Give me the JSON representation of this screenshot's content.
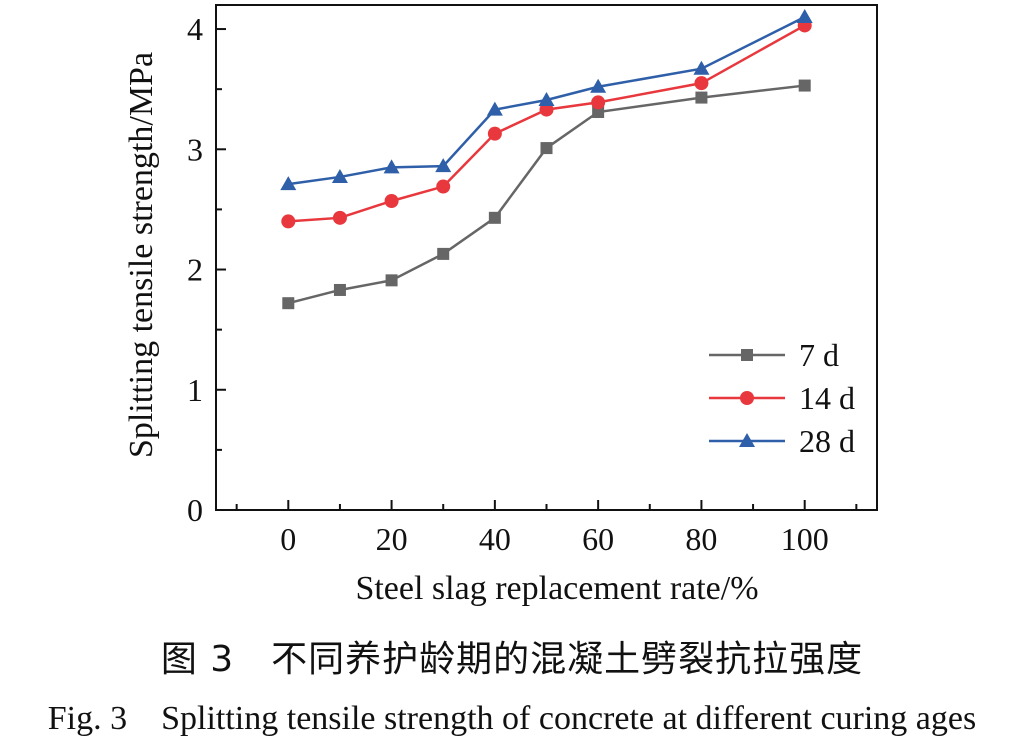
{
  "chart_data": {
    "type": "line",
    "xlabel": "Steel slag replacement rate/%",
    "ylabel": "Splitting tensile strength/MPa",
    "xlim": [
      -14,
      114
    ],
    "ylim": [
      0,
      4.2
    ],
    "x_ticks": [
      "0",
      "20",
      "40",
      "60",
      "80",
      "100"
    ],
    "y_ticks": [
      "0",
      "1",
      "2",
      "3",
      "4"
    ],
    "x": [
      0,
      10,
      20,
      30,
      40,
      50,
      60,
      80,
      100
    ],
    "series": [
      {
        "name": "7 d",
        "color": "#666666",
        "marker": "square",
        "values": [
          1.72,
          1.83,
          1.91,
          2.13,
          2.43,
          3.01,
          3.31,
          3.43,
          3.53
        ]
      },
      {
        "name": "14 d",
        "color": "#e8383d",
        "marker": "circle",
        "values": [
          2.4,
          2.43,
          2.57,
          2.69,
          3.13,
          3.33,
          3.39,
          3.55,
          4.03
        ]
      },
      {
        "name": "28 d",
        "color": "#2e5fa8",
        "marker": "triangle",
        "values": [
          2.71,
          2.77,
          2.85,
          2.86,
          3.33,
          3.41,
          3.52,
          3.67,
          4.1
        ]
      }
    ],
    "legend_position": "bottom-right",
    "grid": false
  },
  "caption_cn": "图 3　不同养护龄期的混凝土劈裂抗拉强度",
  "caption_en": "Fig. 3　Splitting tensile strength of concrete at different curing ages"
}
